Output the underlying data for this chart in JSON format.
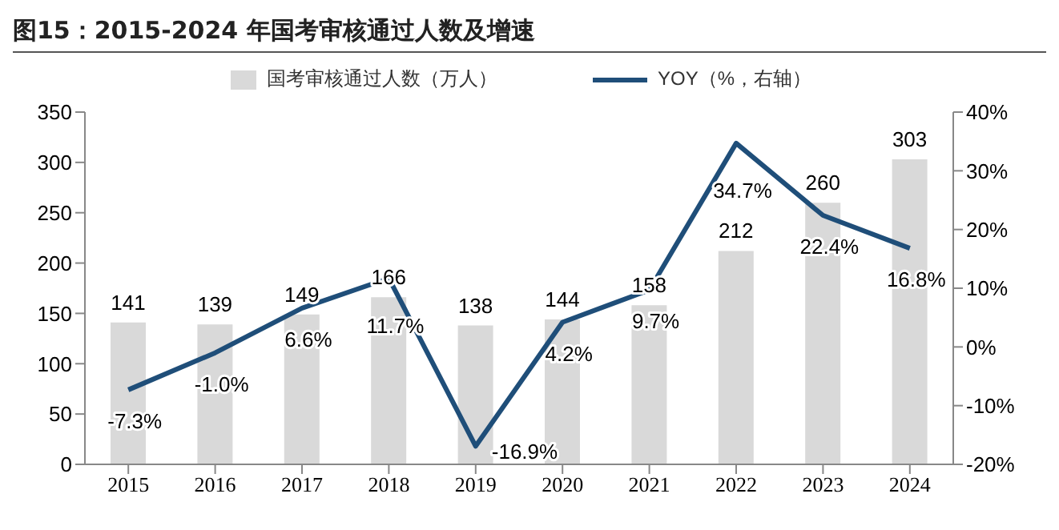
{
  "chart_data": {
    "type": "bar",
    "title": "图15：2015-2024 年国考审核通过人数及增速",
    "categories": [
      "2015",
      "2016",
      "2017",
      "2018",
      "2019",
      "2020",
      "2021",
      "2022",
      "2023",
      "2024"
    ],
    "series": [
      {
        "name": "国考审核通过人数（万人）",
        "color": "#d9d9d9",
        "values": [
          141,
          139,
          149,
          166,
          138,
          144,
          158,
          212,
          260,
          303
        ],
        "value_labels": [
          "141",
          "139",
          "149",
          "166",
          "138",
          "144",
          "158",
          "212",
          "260",
          "303"
        ]
      },
      {
        "name": "YOY（%，右轴）",
        "type": "line",
        "axis": "y2",
        "color": "#1f4e79",
        "values": [
          -7.3,
          -1.0,
          6.6,
          11.7,
          -16.9,
          4.2,
          9.7,
          34.7,
          22.4,
          16.8
        ],
        "value_labels": [
          "-7.3%",
          "-1.0%",
          "6.6%",
          "11.7%",
          "-16.9%",
          "4.2%",
          "9.7%",
          "34.7%",
          "22.4%",
          "16.8%"
        ]
      }
    ],
    "ylim": [
      0,
      350
    ],
    "yticks": [
      0,
      50,
      100,
      150,
      200,
      250,
      300,
      350
    ],
    "y2lim": [
      -20,
      40
    ],
    "y2ticks": [
      {
        "value": -20,
        "label": "-20%"
      },
      {
        "value": -10,
        "label": "-10%"
      },
      {
        "value": 0,
        "label": "0%"
      },
      {
        "value": 10,
        "label": "10%"
      },
      {
        "value": 20,
        "label": "20%"
      },
      {
        "value": 30,
        "label": "30%"
      },
      {
        "value": 40,
        "label": "40%"
      }
    ],
    "grid": false,
    "legend": "top",
    "marker": "none",
    "line_style": "solid"
  }
}
